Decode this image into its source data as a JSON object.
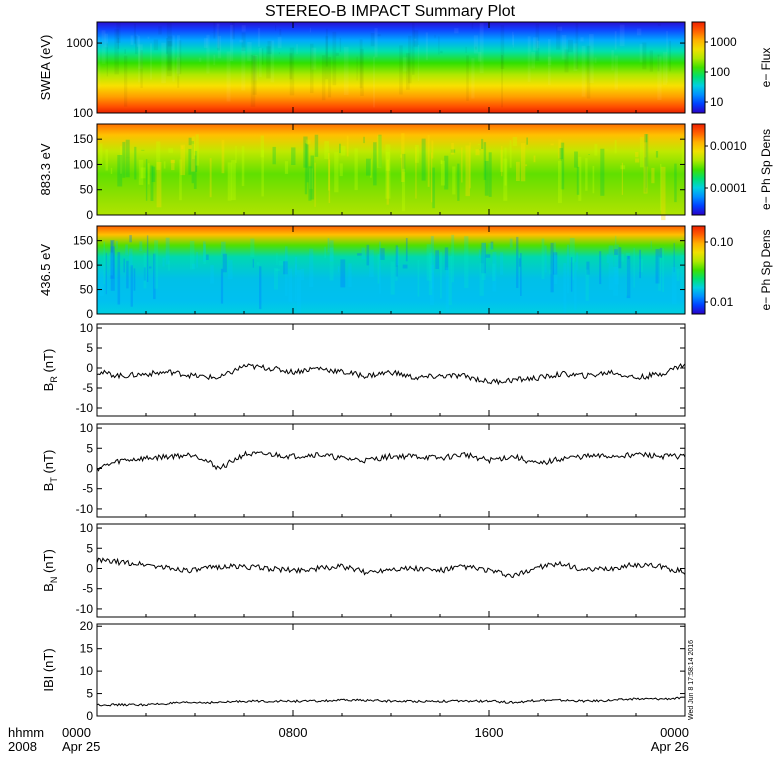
{
  "title": "STEREO-B IMPACT Summary Plot",
  "footer": {
    "left_top": "hhmm",
    "left_bottom": "2008",
    "x_ticks": [
      "0000",
      "0800",
      "1600",
      "0000"
    ],
    "x_dates": [
      "Apr 25",
      "Apr 26"
    ]
  },
  "timestamp": "Wed Jun 8 17:58:14 2016",
  "colors": {
    "trace": "#000000",
    "axis": "#000000"
  },
  "chart_data": [
    {
      "type": "heatmap",
      "ylabel": "SWEA (eV)",
      "y_scale": "log",
      "ylim": [
        100,
        2000
      ],
      "y_ticks": [
        "1000",
        "100"
      ],
      "colorbar_label": "e− Flux",
      "colorbar_ticks": [
        "1000",
        "100",
        "10"
      ],
      "description_colors": [
        "#3010d0",
        "#0060ff",
        "#00c0ff",
        "#00e0a0",
        "#30e000",
        "#a0e000",
        "#f0e000",
        "#ffa000",
        "#ff4000",
        "#e02000"
      ]
    },
    {
      "type": "heatmap",
      "ylabel": "883.3 eV",
      "ylim": [
        0,
        180
      ],
      "y_ticks": [
        "150",
        "100",
        "50",
        "0"
      ],
      "colorbar_label": "e− Ph Sp Dens",
      "colorbar_ticks": [
        "0.0010",
        "0.0001"
      ]
    },
    {
      "type": "heatmap",
      "ylabel": "436.5 eV",
      "ylim": [
        0,
        180
      ],
      "y_ticks": [
        "150",
        "100",
        "50",
        "0"
      ],
      "colorbar_label": "e− Ph Sp Dens",
      "colorbar_ticks": [
        "0.10",
        "0.01"
      ]
    },
    {
      "type": "line",
      "ylabel": "B",
      "ylabel_sub": "R",
      "ylabel_unit": "(nT)",
      "ylim": [
        -12,
        11
      ],
      "y_ticks": [
        "10",
        "5",
        "0",
        "-5",
        "-10"
      ],
      "x": [
        0,
        1,
        2,
        3,
        4,
        5,
        6,
        7,
        8,
        9,
        10,
        11,
        12,
        13,
        14,
        15,
        16,
        17,
        18,
        19,
        20,
        21,
        22,
        23,
        24
      ],
      "y": [
        -1,
        -2,
        -1.5,
        -1,
        -2,
        -2.5,
        0.5,
        0,
        -1,
        0,
        -1,
        -2,
        -1,
        -2.5,
        -2,
        -2,
        -3.5,
        -3,
        -2.5,
        -1.5,
        -2,
        -1,
        -2.5,
        -1.5,
        1
      ]
    },
    {
      "type": "line",
      "ylabel": "B",
      "ylabel_sub": "T",
      "ylabel_unit": "(nT)",
      "ylim": [
        -12,
        11
      ],
      "y_ticks": [
        "10",
        "5",
        "0",
        "-5",
        "-10"
      ],
      "x": [
        0,
        1,
        2,
        3,
        4,
        5,
        6,
        7,
        8,
        9,
        10,
        11,
        12,
        13,
        14,
        15,
        16,
        17,
        18,
        19,
        20,
        21,
        22,
        23,
        24
      ],
      "y": [
        0,
        2,
        2.5,
        3,
        3.5,
        0,
        3.5,
        3.5,
        3,
        3.5,
        2.5,
        2,
        3,
        3,
        2.5,
        3.5,
        2,
        3,
        1,
        2.5,
        3,
        3,
        3.5,
        3,
        3
      ]
    },
    {
      "type": "line",
      "ylabel": "B",
      "ylabel_sub": "N",
      "ylabel_unit": "(nT)",
      "ylim": [
        -12,
        11
      ],
      "y_ticks": [
        "10",
        "5",
        "0",
        "-5",
        "-10"
      ],
      "x": [
        0,
        1,
        2,
        3,
        4,
        5,
        6,
        7,
        8,
        9,
        10,
        11,
        12,
        13,
        14,
        15,
        16,
        17,
        18,
        19,
        20,
        21,
        22,
        23,
        24
      ],
      "y": [
        2,
        1.5,
        1,
        0,
        -0.5,
        0.5,
        0.5,
        0,
        -0.5,
        0,
        0.5,
        -1,
        0,
        0,
        -0.5,
        0.5,
        -0.5,
        -2,
        0.5,
        1,
        -0.5,
        0,
        1,
        0.5,
        -1
      ]
    },
    {
      "type": "line",
      "ylabel": "IBI",
      "ylabel_unit": "(nT)",
      "ylim": [
        0,
        20.5
      ],
      "y_ticks": [
        "20",
        "15",
        "10",
        "5",
        "0"
      ],
      "x": [
        0,
        1,
        2,
        3,
        4,
        5,
        6,
        7,
        8,
        9,
        10,
        11,
        12,
        13,
        14,
        15,
        16,
        17,
        18,
        19,
        20,
        21,
        22,
        23,
        24
      ],
      "y": [
        2.5,
        2.5,
        2.5,
        2.8,
        3,
        3,
        3.3,
        3.3,
        3.3,
        3.3,
        3.5,
        3.5,
        3.3,
        3.3,
        3.3,
        3.3,
        3.3,
        3,
        3.5,
        3.5,
        3.3,
        3.5,
        3.8,
        3.8,
        4
      ]
    }
  ]
}
